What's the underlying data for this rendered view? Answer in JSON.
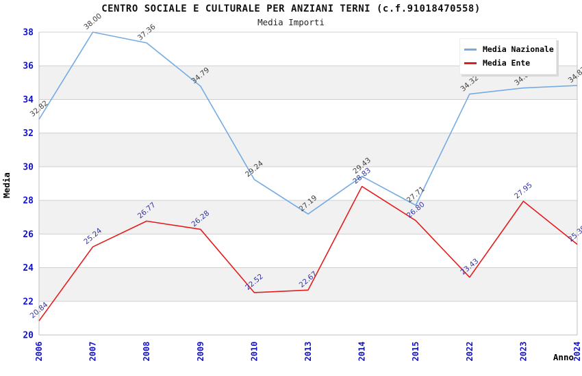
{
  "title": "CENTRO SOCIALE E CULTURALE PER ANZIANI TERNI (c.f.91018470558)",
  "subtitle": "Media Importi",
  "chart_data": {
    "type": "line",
    "categories": [
      "2006",
      "2007",
      "2008",
      "2009",
      "2010",
      "2013",
      "2014",
      "2015",
      "2022",
      "2023",
      "2024"
    ],
    "series": [
      {
        "name": "Media Nazionale",
        "color": "#74ABE2",
        "label_color": "#3F3F3F",
        "values": [
          32.82,
          38.0,
          37.36,
          34.79,
          29.24,
          27.19,
          29.43,
          27.71,
          34.32,
          34.68,
          34.83
        ]
      },
      {
        "name": "Media Ente",
        "color": "#E41C1C",
        "label_color": "#3434A3",
        "values": [
          20.84,
          25.24,
          26.77,
          26.28,
          22.52,
          22.67,
          28.83,
          26.8,
          23.43,
          27.95,
          25.39
        ]
      }
    ],
    "xlabel": "Anno",
    "ylabel": "Media",
    "ylim": [
      20,
      38
    ],
    "ytick_step": 2,
    "yticks": [
      20,
      22,
      24,
      26,
      28,
      30,
      32,
      34,
      36,
      38
    ],
    "grid": "horizontal",
    "background_bands": "alternating gray every 2 units",
    "legend_position": "top-right",
    "value_labels": "rotated 45deg above points, 2 decimals",
    "colors": {
      "tick_label": "#1111CC",
      "grid": "#CFCFCF",
      "band": "#F1F1F1",
      "axis": "#BFBFBF",
      "axis_title": "#000000"
    }
  }
}
